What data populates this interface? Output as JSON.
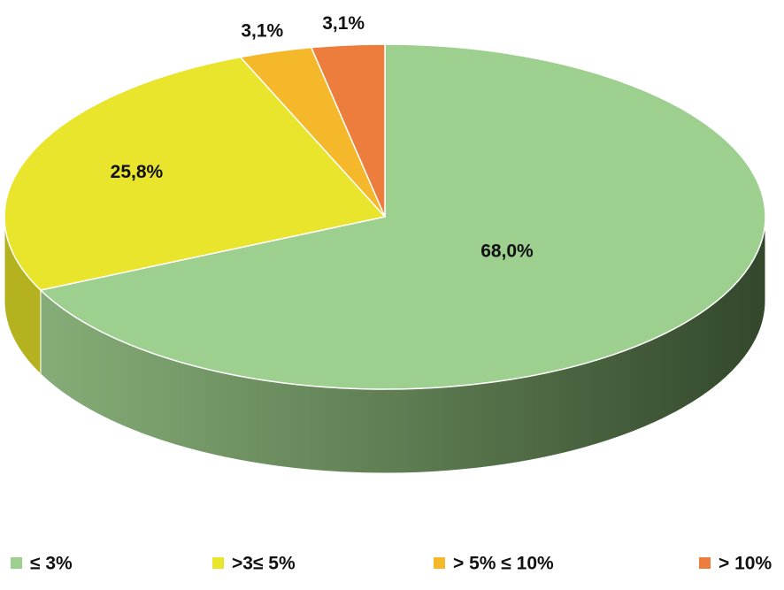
{
  "chart_data": {
    "type": "pie",
    "categories": [
      "≤ 3%",
      ">3≤ 5%",
      "> 5% ≤ 10%",
      "> 10%"
    ],
    "values": [
      68.0,
      25.8,
      3.1,
      3.1
    ],
    "value_labels": [
      "68,0%",
      "25,8%",
      "3,1%",
      "3,1%"
    ],
    "colors": [
      "#9dcf8f",
      "#e8e52c",
      "#f5b82a",
      "#ec7d3c"
    ],
    "legend": "bottom"
  }
}
